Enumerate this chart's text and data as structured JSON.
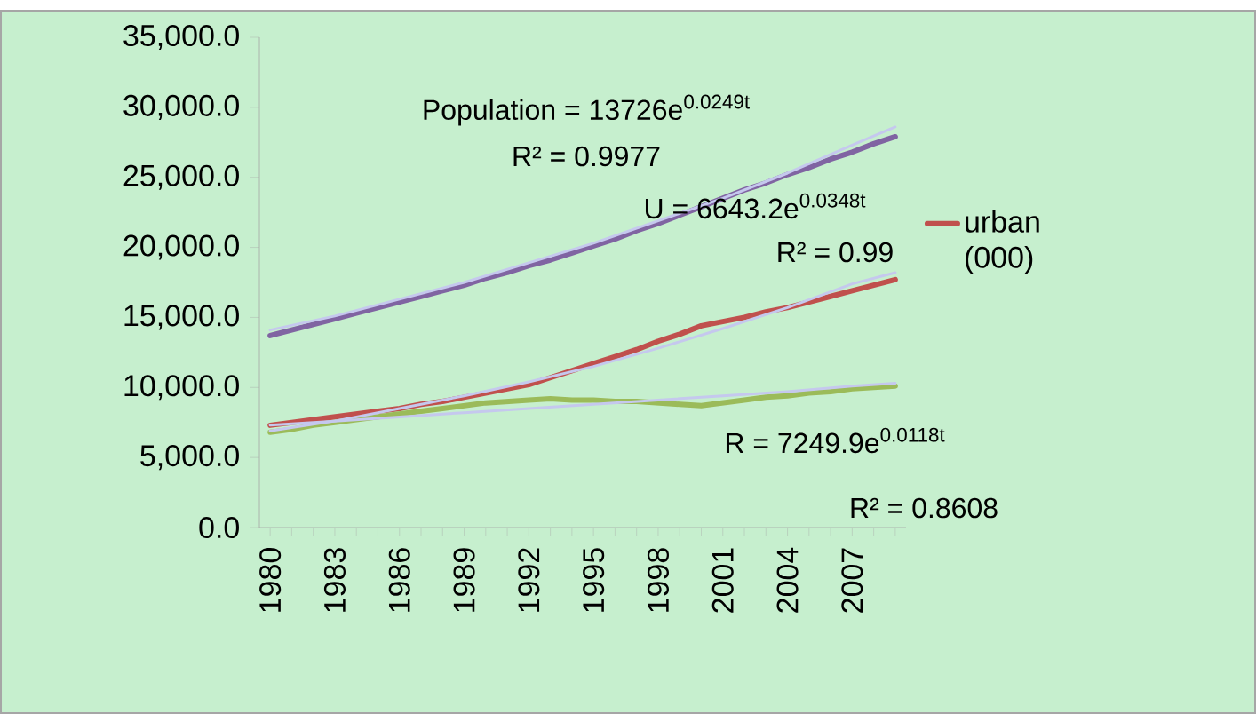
{
  "chart_data": {
    "type": "line",
    "categories": [
      "1980",
      null,
      null,
      "1983",
      null,
      null,
      "1986",
      null,
      null,
      "1989",
      null,
      null,
      "1992",
      null,
      null,
      "1995",
      null,
      null,
      "1998",
      null,
      null,
      "2001",
      null,
      null,
      "2004",
      null,
      null,
      "2007",
      null,
      null
    ],
    "series": [
      {
        "color": "#8064a2",
        "values": [
          13700,
          14100,
          14500,
          14900,
          15300,
          15700,
          16100,
          16500,
          16900,
          17300,
          17800,
          18200,
          18700,
          19100,
          19600,
          20100,
          20600,
          21200,
          21700,
          22300,
          22900,
          23500,
          24100,
          24600,
          25200,
          25700,
          26300,
          26800,
          27400,
          27900
        ]
      },
      {
        "name": "urban (000)",
        "color": "#c0504d",
        "values": [
          7300,
          7500,
          7700,
          7900,
          8100,
          8300,
          8500,
          8800,
          9000,
          9300,
          9600,
          9900,
          10200,
          10700,
          11200,
          11700,
          12200,
          12700,
          13300,
          13800,
          14400,
          14700,
          15000,
          15400,
          15700,
          16100,
          16500,
          16900,
          17300,
          17700
        ]
      },
      {
        "color": "#9bbb59",
        "values": [
          6800,
          7000,
          7300,
          7500,
          7700,
          7900,
          8100,
          8300,
          8500,
          8700,
          8900,
          9000,
          9100,
          9200,
          9100,
          9100,
          9000,
          9000,
          8900,
          8800,
          8700,
          8900,
          9100,
          9300,
          9400,
          9600,
          9700,
          9900,
          10000,
          10100
        ]
      },
      {
        "color": "#c5c8ee",
        "values": [
          14100,
          null,
          null,
          15100,
          null,
          null,
          16300,
          null,
          null,
          17500,
          null,
          null,
          18900,
          null,
          null,
          20300,
          null,
          null,
          21900,
          null,
          null,
          23500,
          null,
          null,
          25300,
          null,
          null,
          27300,
          null,
          28600
        ]
      },
      {
        "color": "#c5c8ee",
        "values": [
          6900,
          null,
          null,
          7600,
          null,
          null,
          8500,
          null,
          null,
          9400,
          null,
          null,
          10400,
          null,
          null,
          11500,
          null,
          null,
          12800,
          null,
          null,
          14200,
          null,
          null,
          15700,
          null,
          null,
          17400,
          null,
          18200
        ]
      },
      {
        "color": "#c5c8ee",
        "values": [
          7300,
          null,
          null,
          7600,
          null,
          null,
          7900,
          null,
          null,
          8200,
          null,
          null,
          8500,
          null,
          null,
          8800,
          null,
          null,
          9100,
          null,
          null,
          9400,
          null,
          null,
          9700,
          null,
          null,
          10100,
          null,
          10300
        ]
      }
    ],
    "ylim": [
      0,
      35000
    ],
    "yticks": [
      {
        "value": 0,
        "label": "0.0"
      },
      {
        "value": 5000,
        "label": "5,000.0"
      },
      {
        "value": 10000,
        "label": "10,000.0"
      },
      {
        "value": 15000,
        "label": "15,000.0"
      },
      {
        "value": 20000,
        "label": "20,000.0"
      },
      {
        "value": 25000,
        "label": "25,000.0"
      },
      {
        "value": 30000,
        "label": "30,000.0"
      },
      {
        "value": 35000,
        "label": "35,000.0"
      }
    ],
    "annotations": [
      "Population = 13726e$^{0.0249t}$",
      "R² = 0.9977",
      "U = 6643.2e$^{0.0348t}$",
      "R² = 0.99",
      "R = 7249.9e$^{0.0118t}$",
      "R² = 0.8608"
    ],
    "legend": "right",
    "grid": false,
    "marker": "none"
  }
}
